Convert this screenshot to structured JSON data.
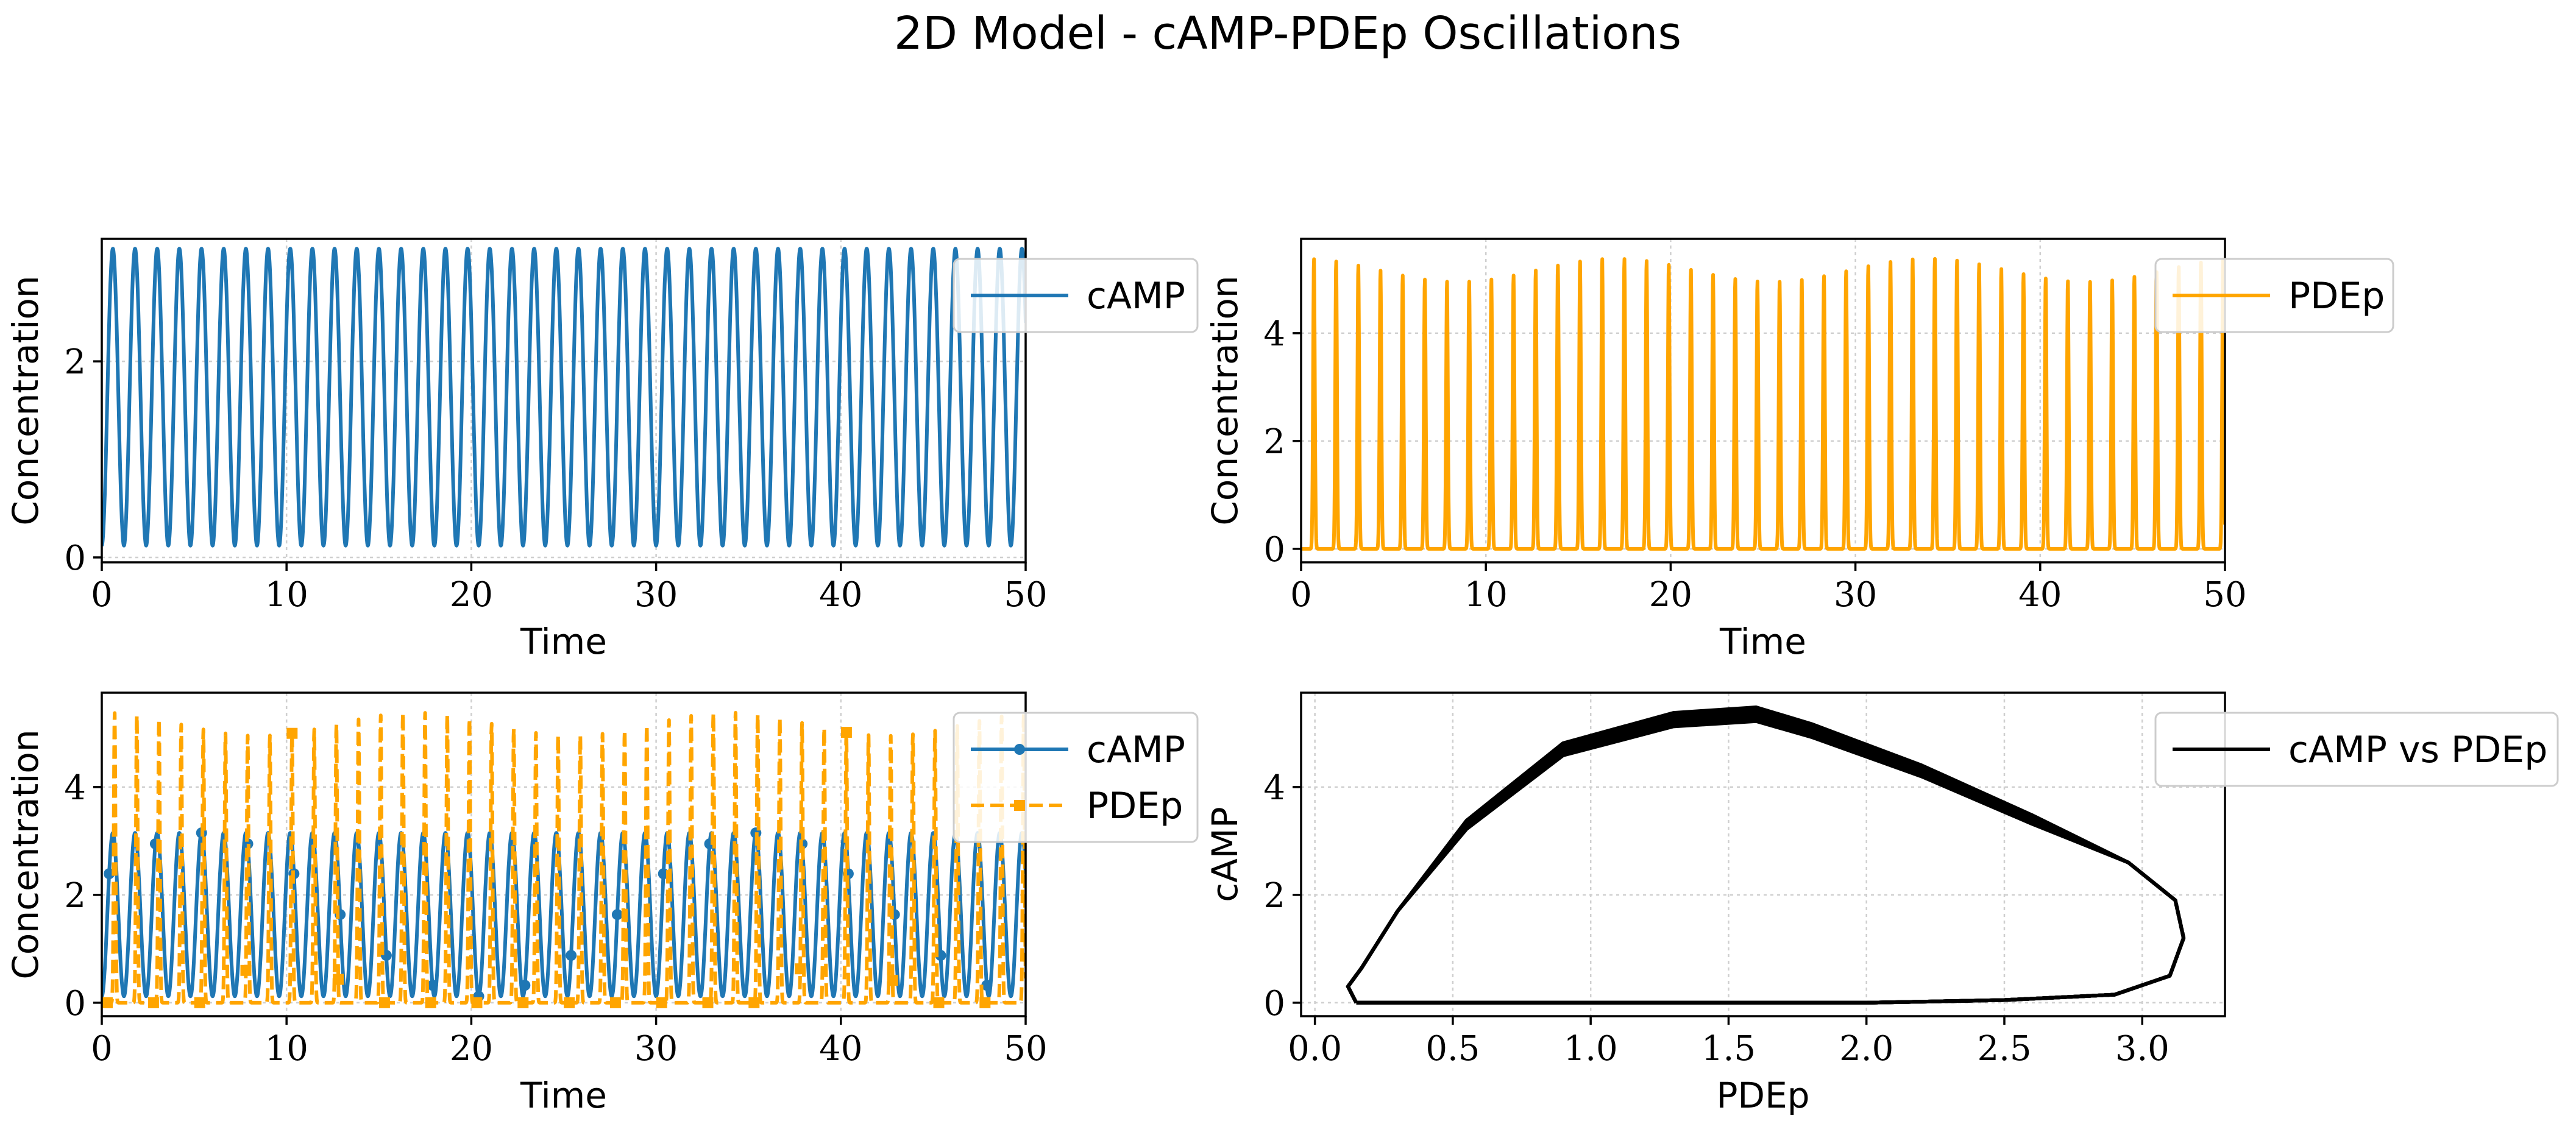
{
  "figure": {
    "title": "2D Model - cAMP-PDEp Oscillations"
  },
  "colors": {
    "camp": "#1f77b4",
    "pdep": "#ffa500",
    "phase": "#000000"
  },
  "chart_data": [
    {
      "id": "panel1",
      "type": "line",
      "title": "",
      "xlabel": "Time",
      "ylabel": "Concentration",
      "xlim": [
        0,
        50
      ],
      "ylim": [
        -0.05,
        3.25
      ],
      "xticks": [
        0,
        10,
        20,
        30,
        40,
        50
      ],
      "yticks": [
        0,
        2
      ],
      "grid": true,
      "legend_position": "top-right",
      "series": [
        {
          "name": "cAMP",
          "color": "#1f77b4",
          "style": "solid",
          "marker": "none",
          "period": 1.2,
          "min": 0.12,
          "max": 3.15,
          "shape": "sine"
        }
      ]
    },
    {
      "id": "panel2",
      "type": "line",
      "title": "",
      "xlabel": "Time",
      "ylabel": "Concentration",
      "xlim": [
        0,
        50
      ],
      "ylim": [
        -0.25,
        5.75
      ],
      "xticks": [
        0,
        10,
        20,
        30,
        40,
        50
      ],
      "yticks": [
        0,
        2,
        4
      ],
      "grid": true,
      "legend_position": "top-right",
      "series": [
        {
          "name": "PDEp",
          "color": "#ffa500",
          "style": "solid",
          "marker": "none",
          "period": 1.2,
          "min": 0.0,
          "max": 5.4,
          "shape": "spike"
        }
      ]
    },
    {
      "id": "panel3",
      "type": "line",
      "title": "",
      "xlabel": "Time",
      "ylabel": "Concentration",
      "xlim": [
        0,
        50
      ],
      "ylim": [
        -0.25,
        5.75
      ],
      "xticks": [
        0,
        10,
        20,
        30,
        40,
        50
      ],
      "yticks": [
        0,
        2,
        4
      ],
      "grid": true,
      "legend_position": "top-right",
      "series": [
        {
          "name": "cAMP",
          "color": "#1f77b4",
          "style": "solid",
          "marker": "circle",
          "period": 1.2,
          "min": 0.12,
          "max": 3.15,
          "shape": "sine"
        },
        {
          "name": "PDEp",
          "color": "#ffa500",
          "style": "dashed",
          "marker": "square",
          "period": 1.2,
          "min": 0.0,
          "max": 5.4,
          "shape": "spike"
        }
      ]
    },
    {
      "id": "panel4",
      "type": "line",
      "title": "",
      "xlabel": "PDEp",
      "ylabel": "cAMP",
      "xlim": [
        -0.05,
        3.3
      ],
      "ylim": [
        -0.25,
        5.75
      ],
      "xticks": [
        0.0,
        0.5,
        1.0,
        1.5,
        2.0,
        2.5,
        3.0
      ],
      "xticklabels": [
        "0.0",
        "0.5",
        "1.0",
        "1.5",
        "2.0",
        "2.5",
        "3.0"
      ],
      "yticks": [
        0,
        2,
        4
      ],
      "grid": true,
      "legend_position": "top-right",
      "series": [
        {
          "name": "cAMP vs PDEp",
          "color": "#000000",
          "style": "solid",
          "marker": "none",
          "loop": [
            [
              0.15,
              0.0
            ],
            [
              0.5,
              0.0
            ],
            [
              1.0,
              0.0
            ],
            [
              1.5,
              0.0
            ],
            [
              2.0,
              0.0
            ],
            [
              2.5,
              0.05
            ],
            [
              2.9,
              0.15
            ],
            [
              3.1,
              0.5
            ],
            [
              3.15,
              1.2
            ],
            [
              3.12,
              1.9
            ],
            [
              2.95,
              2.6
            ],
            [
              2.6,
              3.4
            ],
            [
              2.2,
              4.3
            ],
            [
              1.8,
              5.05
            ],
            [
              1.6,
              5.35
            ],
            [
              1.3,
              5.25
            ],
            [
              0.9,
              4.7
            ],
            [
              0.55,
              3.3
            ],
            [
              0.3,
              1.7
            ],
            [
              0.17,
              0.65
            ],
            [
              0.12,
              0.3
            ],
            [
              0.15,
              0.0
            ]
          ]
        }
      ]
    }
  ]
}
